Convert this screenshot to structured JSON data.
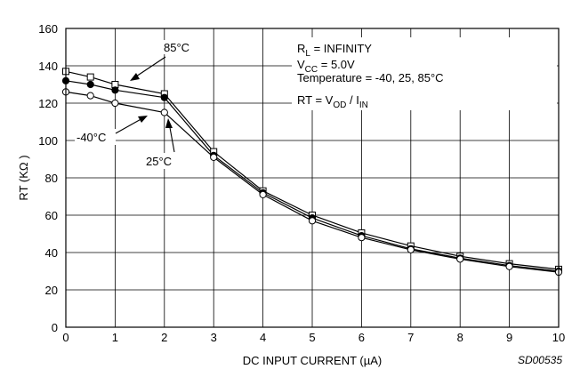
{
  "chart_data": {
    "type": "line",
    "xlabel": "DC INPUT CURRENT (µA)",
    "ylabel": "RT (KΩ )",
    "xlim": [
      0,
      10
    ],
    "ylim": [
      0,
      160
    ],
    "xticks": [
      0,
      1,
      2,
      3,
      4,
      5,
      6,
      7,
      8,
      9,
      10
    ],
    "yticks": [
      0,
      20,
      40,
      60,
      80,
      100,
      120,
      140,
      160
    ],
    "grid": true,
    "code_label": "SD00535",
    "conditions": {
      "rl_main": "R",
      "rl_sub": "L",
      "rl_rest": " = INFINITY",
      "vcc_main": "V",
      "vcc_sub": "CC",
      "vcc_rest": " = 5.0V",
      "temperature": "Temperature = -40, 25, 85°C",
      "rt_pre": "RT = V",
      "rt_sub1": "OD",
      "rt_mid": " / I",
      "rt_sub2": "IN"
    },
    "series": [
      {
        "name": "85°C",
        "marker": "square-open",
        "points": [
          [
            0,
            137
          ],
          [
            0.5,
            134
          ],
          [
            1,
            130
          ],
          [
            2,
            125
          ],
          [
            3,
            94
          ],
          [
            4,
            73
          ],
          [
            5,
            60
          ],
          [
            6,
            50.5
          ],
          [
            7,
            43.5
          ],
          [
            8,
            38
          ],
          [
            9,
            34
          ],
          [
            10,
            31
          ]
        ]
      },
      {
        "name": "25°C",
        "marker": "circle-filled",
        "points": [
          [
            0,
            132
          ],
          [
            0.5,
            130
          ],
          [
            1,
            127
          ],
          [
            2,
            123
          ],
          [
            3,
            92
          ],
          [
            4,
            72
          ],
          [
            5,
            58.5
          ],
          [
            6,
            49
          ],
          [
            7,
            42
          ],
          [
            8,
            37
          ],
          [
            9,
            33
          ],
          [
            10,
            30
          ]
        ]
      },
      {
        "name": "-40°C",
        "marker": "circle-open",
        "points": [
          [
            0,
            126
          ],
          [
            0.5,
            124
          ],
          [
            1,
            120
          ],
          [
            2,
            115
          ],
          [
            3,
            91
          ],
          [
            4,
            71
          ],
          [
            5,
            57
          ],
          [
            6,
            48
          ],
          [
            7,
            41.5
          ],
          [
            8,
            36.5
          ],
          [
            9,
            32.5
          ],
          [
            10,
            29.5
          ]
        ]
      }
    ],
    "annotations": [
      {
        "text": "85°C",
        "target_series": "85°C"
      },
      {
        "text": "-40°C",
        "target_series": "-40°C"
      },
      {
        "text": "25°C",
        "target_series": "25°C"
      }
    ]
  }
}
